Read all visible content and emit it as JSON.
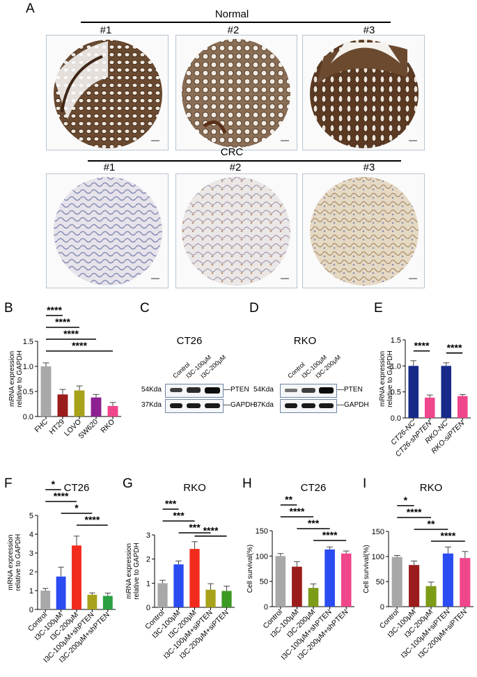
{
  "panel_a": {
    "letter": "A",
    "normal_label": "Normal",
    "crc_label": "CRC",
    "samples": [
      "#1",
      "#2",
      "#3"
    ]
  },
  "panel_c": {
    "letter": "C",
    "title": "CT26",
    "lanes": [
      "Control",
      "I3C-100μM",
      "I3C-200μM"
    ],
    "markers": [
      "54Kda",
      "37Kda"
    ],
    "proteins": [
      "PTEN",
      "GAPDH"
    ]
  },
  "panel_d": {
    "letter": "D",
    "title": "RKO",
    "lanes": [
      "Control",
      "I3C-100μM",
      "I3C-200μM"
    ],
    "markers": [
      "54Kda",
      "37Kda"
    ],
    "proteins": [
      "PTEN",
      "GAPDH"
    ]
  },
  "colors": {
    "gray": "#a8a8a8",
    "darkred": "#9b1c1c",
    "olive": "#a8a21a",
    "purple": "#8e2191",
    "pink": "#f0468c",
    "navy": "#172a8a",
    "blue": "#2a4cf2",
    "red": "#f22b1c",
    "olivegreen": "#7c9c18",
    "green": "#2aa043",
    "brightgreen": "#3c9a22"
  },
  "chart_data": [
    {
      "id": "B",
      "letter": "B",
      "type": "bar",
      "title": "",
      "ylabel": "mRNA expression\nrelative to GAPDH",
      "xlabel": "",
      "categories": [
        "FHC",
        "HT29",
        "LOVO",
        "SW620",
        "RKO"
      ],
      "values": [
        1.0,
        0.44,
        0.52,
        0.38,
        0.21
      ],
      "errors": [
        0.07,
        0.1,
        0.09,
        0.06,
        0.07
      ],
      "bar_colors": [
        "#a8a8a8",
        "#9b1c1c",
        "#a8a21a",
        "#8e2191",
        "#f0468c"
      ],
      "ylim": [
        0,
        1.5
      ],
      "yticks": [
        "0.0",
        "0.5",
        "1.0",
        "1.5"
      ],
      "significance": [
        {
          "from": 0,
          "to": 1,
          "label": "****"
        },
        {
          "from": 0,
          "to": 2,
          "label": "****"
        },
        {
          "from": 0,
          "to": 3,
          "label": "****"
        },
        {
          "from": 0,
          "to": 4,
          "label": "****"
        }
      ]
    },
    {
      "id": "E",
      "letter": "E",
      "type": "bar",
      "title": "",
      "ylabel": "mRNA expression\nrelative to GAPDH",
      "xlabel": "",
      "categories": [
        "CT26-NC",
        "CT26-shPTEN",
        "RKO-NC",
        "RKO-siPTEN"
      ],
      "values": [
        1.0,
        0.39,
        1.0,
        0.42
      ],
      "errors": [
        0.1,
        0.05,
        0.06,
        0.03
      ],
      "bar_colors": [
        "#172a8a",
        "#f0468c",
        "#172a8a",
        "#f0468c"
      ],
      "ylim": [
        0,
        1.5
      ],
      "yticks": [
        "0.0",
        "0.5",
        "1.0",
        "1.5"
      ],
      "italic_labels": true,
      "significance": [
        {
          "from": 0,
          "to": 1,
          "label": "****"
        },
        {
          "from": 2,
          "to": 3,
          "label": "****"
        }
      ]
    },
    {
      "id": "F",
      "letter": "F",
      "type": "bar",
      "title": "CT26",
      "ylabel": "mRNA expression\nrelative to GAPDH",
      "xlabel": "",
      "categories": [
        "Control",
        "I3C-100μM",
        "I3C-200μM",
        "I3C-100μM+shPTEN",
        "I3C-200μM+shPTEN"
      ],
      "values": [
        1.0,
        1.75,
        3.4,
        0.78,
        0.72
      ],
      "errors": [
        0.12,
        0.5,
        0.5,
        0.1,
        0.15
      ],
      "bar_colors": [
        "#a8a8a8",
        "#2a4cf2",
        "#f22b1c",
        "#a8a21a",
        "#2aa043"
      ],
      "ylim": [
        0,
        5
      ],
      "yticks": [
        "0",
        "1",
        "2",
        "3",
        "4",
        "5"
      ],
      "significance": [
        {
          "from": 0,
          "to": 1,
          "label": "*"
        },
        {
          "from": 0,
          "to": 2,
          "label": "****"
        },
        {
          "from": 1,
          "to": 3,
          "label": "*"
        },
        {
          "from": 2,
          "to": 4,
          "label": "****"
        }
      ]
    },
    {
      "id": "G",
      "letter": "G",
      "type": "bar",
      "title": "RKO",
      "ylabel": "mRNA expression\nrelative to GAPDH",
      "xlabel": "",
      "categories": [
        "Control",
        "I3C-100μM",
        "I3C-200μM",
        "I3C-100μM+siPTEN",
        "I3C-200μM+siPTEN"
      ],
      "values": [
        1.0,
        1.78,
        2.42,
        0.73,
        0.68
      ],
      "errors": [
        0.12,
        0.14,
        0.3,
        0.25,
        0.2
      ],
      "bar_colors": [
        "#a8a8a8",
        "#2a4cf2",
        "#f22b1c",
        "#a8a21a",
        "#3c9a22"
      ],
      "ylim": [
        0,
        3
      ],
      "yticks": [
        "0",
        "1",
        "2",
        "3"
      ],
      "significance": [
        {
          "from": 0,
          "to": 1,
          "label": "***"
        },
        {
          "from": 0,
          "to": 2,
          "label": "***"
        },
        {
          "from": 1,
          "to": 3,
          "label": "***"
        },
        {
          "from": 2,
          "to": 4,
          "label": "****"
        }
      ]
    },
    {
      "id": "H",
      "letter": "H",
      "type": "bar",
      "title": "CT26",
      "ylabel": "Cell survival(%)",
      "xlabel": "",
      "categories": [
        "Control",
        "I3C-100μM",
        "I3C-200μM",
        "I3C-100μM+shPTEN",
        "I3C-200μM+shPTEN"
      ],
      "values": [
        100,
        79,
        37,
        113,
        105
      ],
      "errors": [
        5,
        10,
        8,
        5,
        5
      ],
      "bar_colors": [
        "#a8a8a8",
        "#9b1c1c",
        "#7c9c18",
        "#2a4cf2",
        "#f0468c"
      ],
      "ylim": [
        0,
        150
      ],
      "yticks": [
        "0",
        "50",
        "100",
        "150"
      ],
      "significance": [
        {
          "from": 0,
          "to": 1,
          "label": "**"
        },
        {
          "from": 0,
          "to": 2,
          "label": "****"
        },
        {
          "from": 1,
          "to": 3,
          "label": "***"
        },
        {
          "from": 2,
          "to": 4,
          "label": "****"
        }
      ]
    },
    {
      "id": "I",
      "letter": "I",
      "type": "bar",
      "title": "RKO",
      "ylabel": "Cell survival(%)",
      "xlabel": "",
      "categories": [
        "Control",
        "I3C-100μM",
        "I3C-200μM",
        "I3C-100μM+siPTEN",
        "I3C-200μM+siPTEN"
      ],
      "values": [
        99,
        83,
        41,
        106,
        97
      ],
      "errors": [
        3,
        8,
        8,
        13,
        13
      ],
      "bar_colors": [
        "#a8a8a8",
        "#9b1c1c",
        "#7c9c18",
        "#2a4cf2",
        "#f0468c"
      ],
      "ylim": [
        0,
        150
      ],
      "yticks": [
        "0",
        "50",
        "100",
        "150"
      ],
      "significance": [
        {
          "from": 0,
          "to": 1,
          "label": "*"
        },
        {
          "from": 0,
          "to": 2,
          "label": "****"
        },
        {
          "from": 1,
          "to": 3,
          "label": "**"
        },
        {
          "from": 2,
          "to": 4,
          "label": "****"
        }
      ]
    }
  ]
}
